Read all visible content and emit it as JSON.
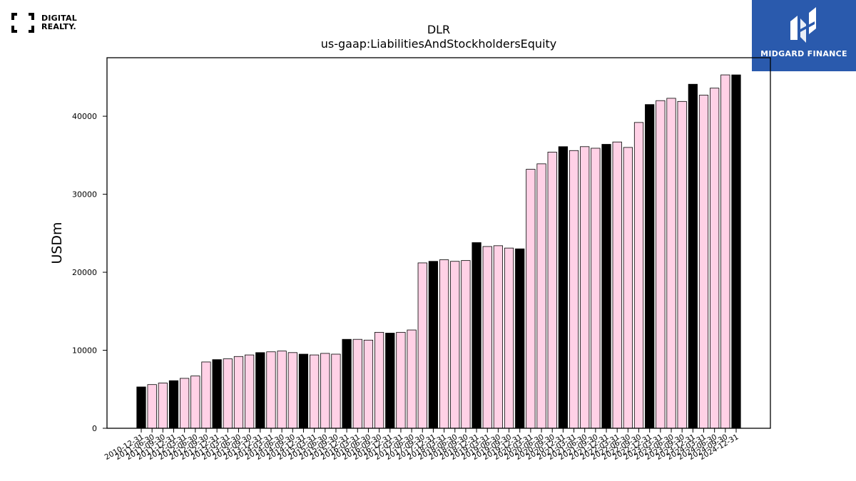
{
  "branding": {
    "company_logo_text": [
      "DIGITAL",
      "REALTY."
    ],
    "publisher_name": "MIDGARD FINANCE"
  },
  "chart_data": {
    "type": "bar",
    "title": "DLR",
    "subtitle": "us-gaap:LiabilitiesAndStockholdersEquity",
    "xlabel": "",
    "ylabel": "USDm",
    "ylim": [
      0,
      47500
    ],
    "yticks": [
      0,
      10000,
      20000,
      30000,
      40000
    ],
    "grid": false,
    "colors": {
      "annual": "#000000",
      "quarterly": "#ffd1e6",
      "edge": "#000000"
    },
    "categories": [
      "2010-12-31",
      "2011-06-30",
      "2011-09-30",
      "2011-12-31",
      "2012-03-31",
      "2012-06-30",
      "2012-09-30",
      "2012-12-31",
      "2013-03-31",
      "2013-06-30",
      "2013-09-30",
      "2013-12-31",
      "2014-03-31",
      "2014-06-30",
      "2014-09-30",
      "2014-12-31",
      "2015-03-31",
      "2015-06-30",
      "2015-09-30",
      "2015-12-31",
      "2016-03-31",
      "2016-06-30",
      "2016-09-30",
      "2016-12-31",
      "2017-03-31",
      "2017-06-30",
      "2017-09-30",
      "2017-12-31",
      "2018-03-31",
      "2018-06-30",
      "2018-09-30",
      "2018-12-31",
      "2019-03-31",
      "2019-06-30",
      "2019-09-30",
      "2019-12-31",
      "2020-03-31",
      "2020-06-30",
      "2020-09-30",
      "2020-12-31",
      "2021-03-31",
      "2021-06-30",
      "2021-09-30",
      "2021-12-31",
      "2022-03-31",
      "2022-06-30",
      "2022-09-30",
      "2022-12-31",
      "2023-03-31",
      "2023-06-30",
      "2023-09-30",
      "2023-12-31",
      "2024-03-31",
      "2024-06-30",
      "2024-09-30",
      "2024-12-31"
    ],
    "values": [
      5300,
      5600,
      5800,
      6100,
      6400,
      6700,
      8500,
      8800,
      8900,
      9200,
      9400,
      9700,
      9800,
      9900,
      9700,
      9500,
      9400,
      9600,
      9500,
      11400,
      11400,
      11300,
      12300,
      12200,
      12300,
      12600,
      21200,
      21400,
      21600,
      21400,
      21500,
      23800,
      23300,
      23400,
      23100,
      23000,
      33200,
      33900,
      35400,
      36100,
      35600,
      36100,
      35900,
      36400,
      36700,
      36000,
      39200,
      41500,
      42000,
      42300,
      41900,
      44100,
      42700,
      43600,
      45300,
      45300
    ],
    "is_annual": [
      true,
      false,
      false,
      true,
      false,
      false,
      false,
      true,
      false,
      false,
      false,
      true,
      false,
      false,
      false,
      true,
      false,
      false,
      false,
      true,
      false,
      false,
      false,
      true,
      false,
      false,
      false,
      true,
      false,
      false,
      false,
      true,
      false,
      false,
      false,
      true,
      false,
      false,
      false,
      true,
      false,
      false,
      false,
      true,
      false,
      false,
      false,
      true,
      false,
      false,
      false,
      true,
      false,
      false,
      false,
      true
    ]
  }
}
